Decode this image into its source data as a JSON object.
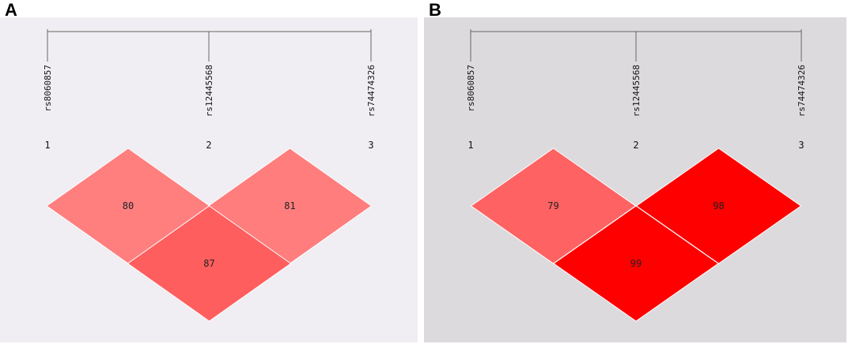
{
  "panels": [
    {
      "letter": "A",
      "background": "#f0eef2",
      "snps": [
        {
          "name": "rs8060857",
          "index": "1"
        },
        {
          "name": "rs12445568",
          "index": "2"
        },
        {
          "name": "rs74474326",
          "index": "3"
        }
      ],
      "cells": [
        {
          "pair": [
            1,
            2
          ],
          "value": "80",
          "color": "#ff7f7f"
        },
        {
          "pair": [
            2,
            3
          ],
          "value": "81",
          "color": "#ff7d7d"
        },
        {
          "pair": [
            1,
            3
          ],
          "value": "87",
          "color": "#ff5e5e"
        }
      ]
    },
    {
      "letter": "B",
      "background": "#dcdadd",
      "snps": [
        {
          "name": "rs8060857",
          "index": "1"
        },
        {
          "name": "rs12445568",
          "index": "2"
        },
        {
          "name": "rs74474326",
          "index": "3"
        }
      ],
      "cells": [
        {
          "pair": [
            1,
            2
          ],
          "value": "79",
          "color": "#ff6262"
        },
        {
          "pair": [
            2,
            3
          ],
          "value": "98",
          "color": "#ff0000"
        },
        {
          "pair": [
            1,
            3
          ],
          "value": "99",
          "color": "#ff0000"
        }
      ]
    }
  ]
}
